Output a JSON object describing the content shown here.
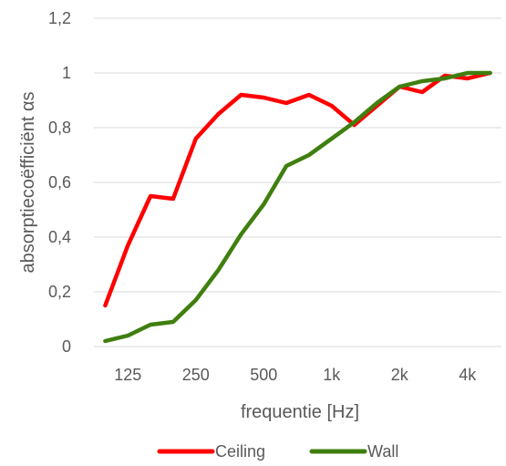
{
  "chart_data": {
    "type": "line",
    "xlabel": "frequentie [Hz]",
    "ylabel": "absorptiecoëfficiënt αs",
    "ylim": [
      0,
      1.2
    ],
    "y_ticks": [
      "0",
      "0,2",
      "0,4",
      "0,6",
      "0,8",
      "1",
      "1,2"
    ],
    "x_ticks": [
      "125",
      "250",
      "500",
      "1k",
      "2k",
      "4k"
    ],
    "x": [
      "100",
      "125",
      "160",
      "200",
      "250",
      "315",
      "400",
      "500",
      "630",
      "800",
      "1k",
      "1.25k",
      "1.6k",
      "2k",
      "2.5k",
      "3.15k",
      "4k",
      "5k"
    ],
    "grid": "horizontal",
    "legend_position": "bottom",
    "series": [
      {
        "name": "Ceiling",
        "color": "#ff0000",
        "values": [
          0.15,
          0.37,
          0.55,
          0.54,
          0.76,
          0.85,
          0.92,
          0.91,
          0.89,
          0.92,
          0.88,
          0.81,
          0.88,
          0.95,
          0.93,
          0.99,
          0.98,
          1.0
        ]
      },
      {
        "name": "Wall",
        "color": "#3f7f0f",
        "values": [
          0.02,
          0.04,
          0.08,
          0.09,
          0.17,
          0.28,
          0.41,
          0.52,
          0.66,
          0.7,
          0.76,
          0.82,
          0.89,
          0.95,
          0.97,
          0.98,
          1.0,
          1.0
        ]
      }
    ]
  }
}
